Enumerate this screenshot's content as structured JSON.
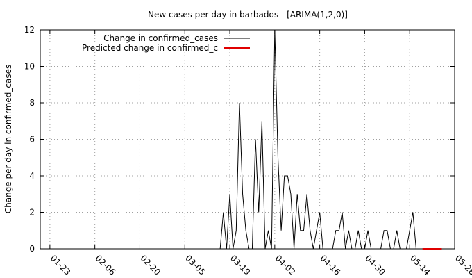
{
  "chart_data": {
    "type": "line",
    "title": "New cases per day in barbados -  [ARIMA(1,2,0)]",
    "xlabel": "",
    "ylabel": "Change per day in confirmed_cases",
    "x_tick_labels": [
      "01-23",
      "02-06",
      "02-20",
      "03-05",
      "03-19",
      "04-02",
      "04-16",
      "04-30",
      "05-14",
      "05-28"
    ],
    "xlim": [
      "2020-01-20",
      "2020-05-28"
    ],
    "ylim": [
      0,
      12
    ],
    "y_ticks": [
      0,
      2,
      4,
      6,
      8,
      10,
      12
    ],
    "y_tick_labels": [
      "0",
      "2",
      "4",
      "6",
      "8",
      "10",
      "12"
    ],
    "grid": true,
    "legend_position": "top-left",
    "series": [
      {
        "name": "Change in confirmed_cases",
        "color": "#000000",
        "x": [
          "2020-03-16",
          "2020-03-17",
          "2020-03-18",
          "2020-03-19",
          "2020-03-20",
          "2020-03-21",
          "2020-03-22",
          "2020-03-23",
          "2020-03-24",
          "2020-03-25",
          "2020-03-26",
          "2020-03-27",
          "2020-03-28",
          "2020-03-29",
          "2020-03-30",
          "2020-03-31",
          "2020-04-01",
          "2020-04-02",
          "2020-04-03",
          "2020-04-04",
          "2020-04-05",
          "2020-04-06",
          "2020-04-07",
          "2020-04-08",
          "2020-04-09",
          "2020-04-10",
          "2020-04-11",
          "2020-04-12",
          "2020-04-13",
          "2020-04-14",
          "2020-04-15",
          "2020-04-16",
          "2020-04-17",
          "2020-04-18",
          "2020-04-19",
          "2020-04-20",
          "2020-04-21",
          "2020-04-22",
          "2020-04-23",
          "2020-04-24",
          "2020-04-25",
          "2020-04-26",
          "2020-04-27",
          "2020-04-28",
          "2020-04-29",
          "2020-04-30",
          "2020-05-01",
          "2020-05-02",
          "2020-05-03",
          "2020-05-04",
          "2020-05-05",
          "2020-05-06",
          "2020-05-07",
          "2020-05-08",
          "2020-05-09",
          "2020-05-10",
          "2020-05-11",
          "2020-05-12",
          "2020-05-13",
          "2020-05-14",
          "2020-05-15",
          "2020-05-16",
          "2020-05-17"
        ],
        "values": [
          0,
          2,
          0,
          3,
          0,
          1,
          8,
          3,
          1,
          0,
          0,
          6,
          2,
          7,
          0,
          1,
          0,
          12,
          5,
          1,
          4,
          4,
          3,
          0,
          3,
          1,
          1,
          3,
          1,
          0,
          1,
          2,
          0,
          0,
          0,
          0,
          1,
          1,
          2,
          0,
          1,
          0,
          0,
          1,
          0,
          0,
          1,
          0,
          0,
          0,
          0,
          1,
          1,
          0,
          0,
          1,
          0,
          0,
          0,
          1,
          2,
          0,
          0
        ]
      },
      {
        "name": "Predicted change in confirmed_c",
        "color": "#e00000",
        "x": [
          "2020-05-18",
          "2020-05-19",
          "2020-05-20",
          "2020-05-21",
          "2020-05-22",
          "2020-05-23",
          "2020-05-24"
        ],
        "values": [
          0,
          0,
          0,
          0,
          0,
          0,
          0
        ]
      }
    ]
  }
}
